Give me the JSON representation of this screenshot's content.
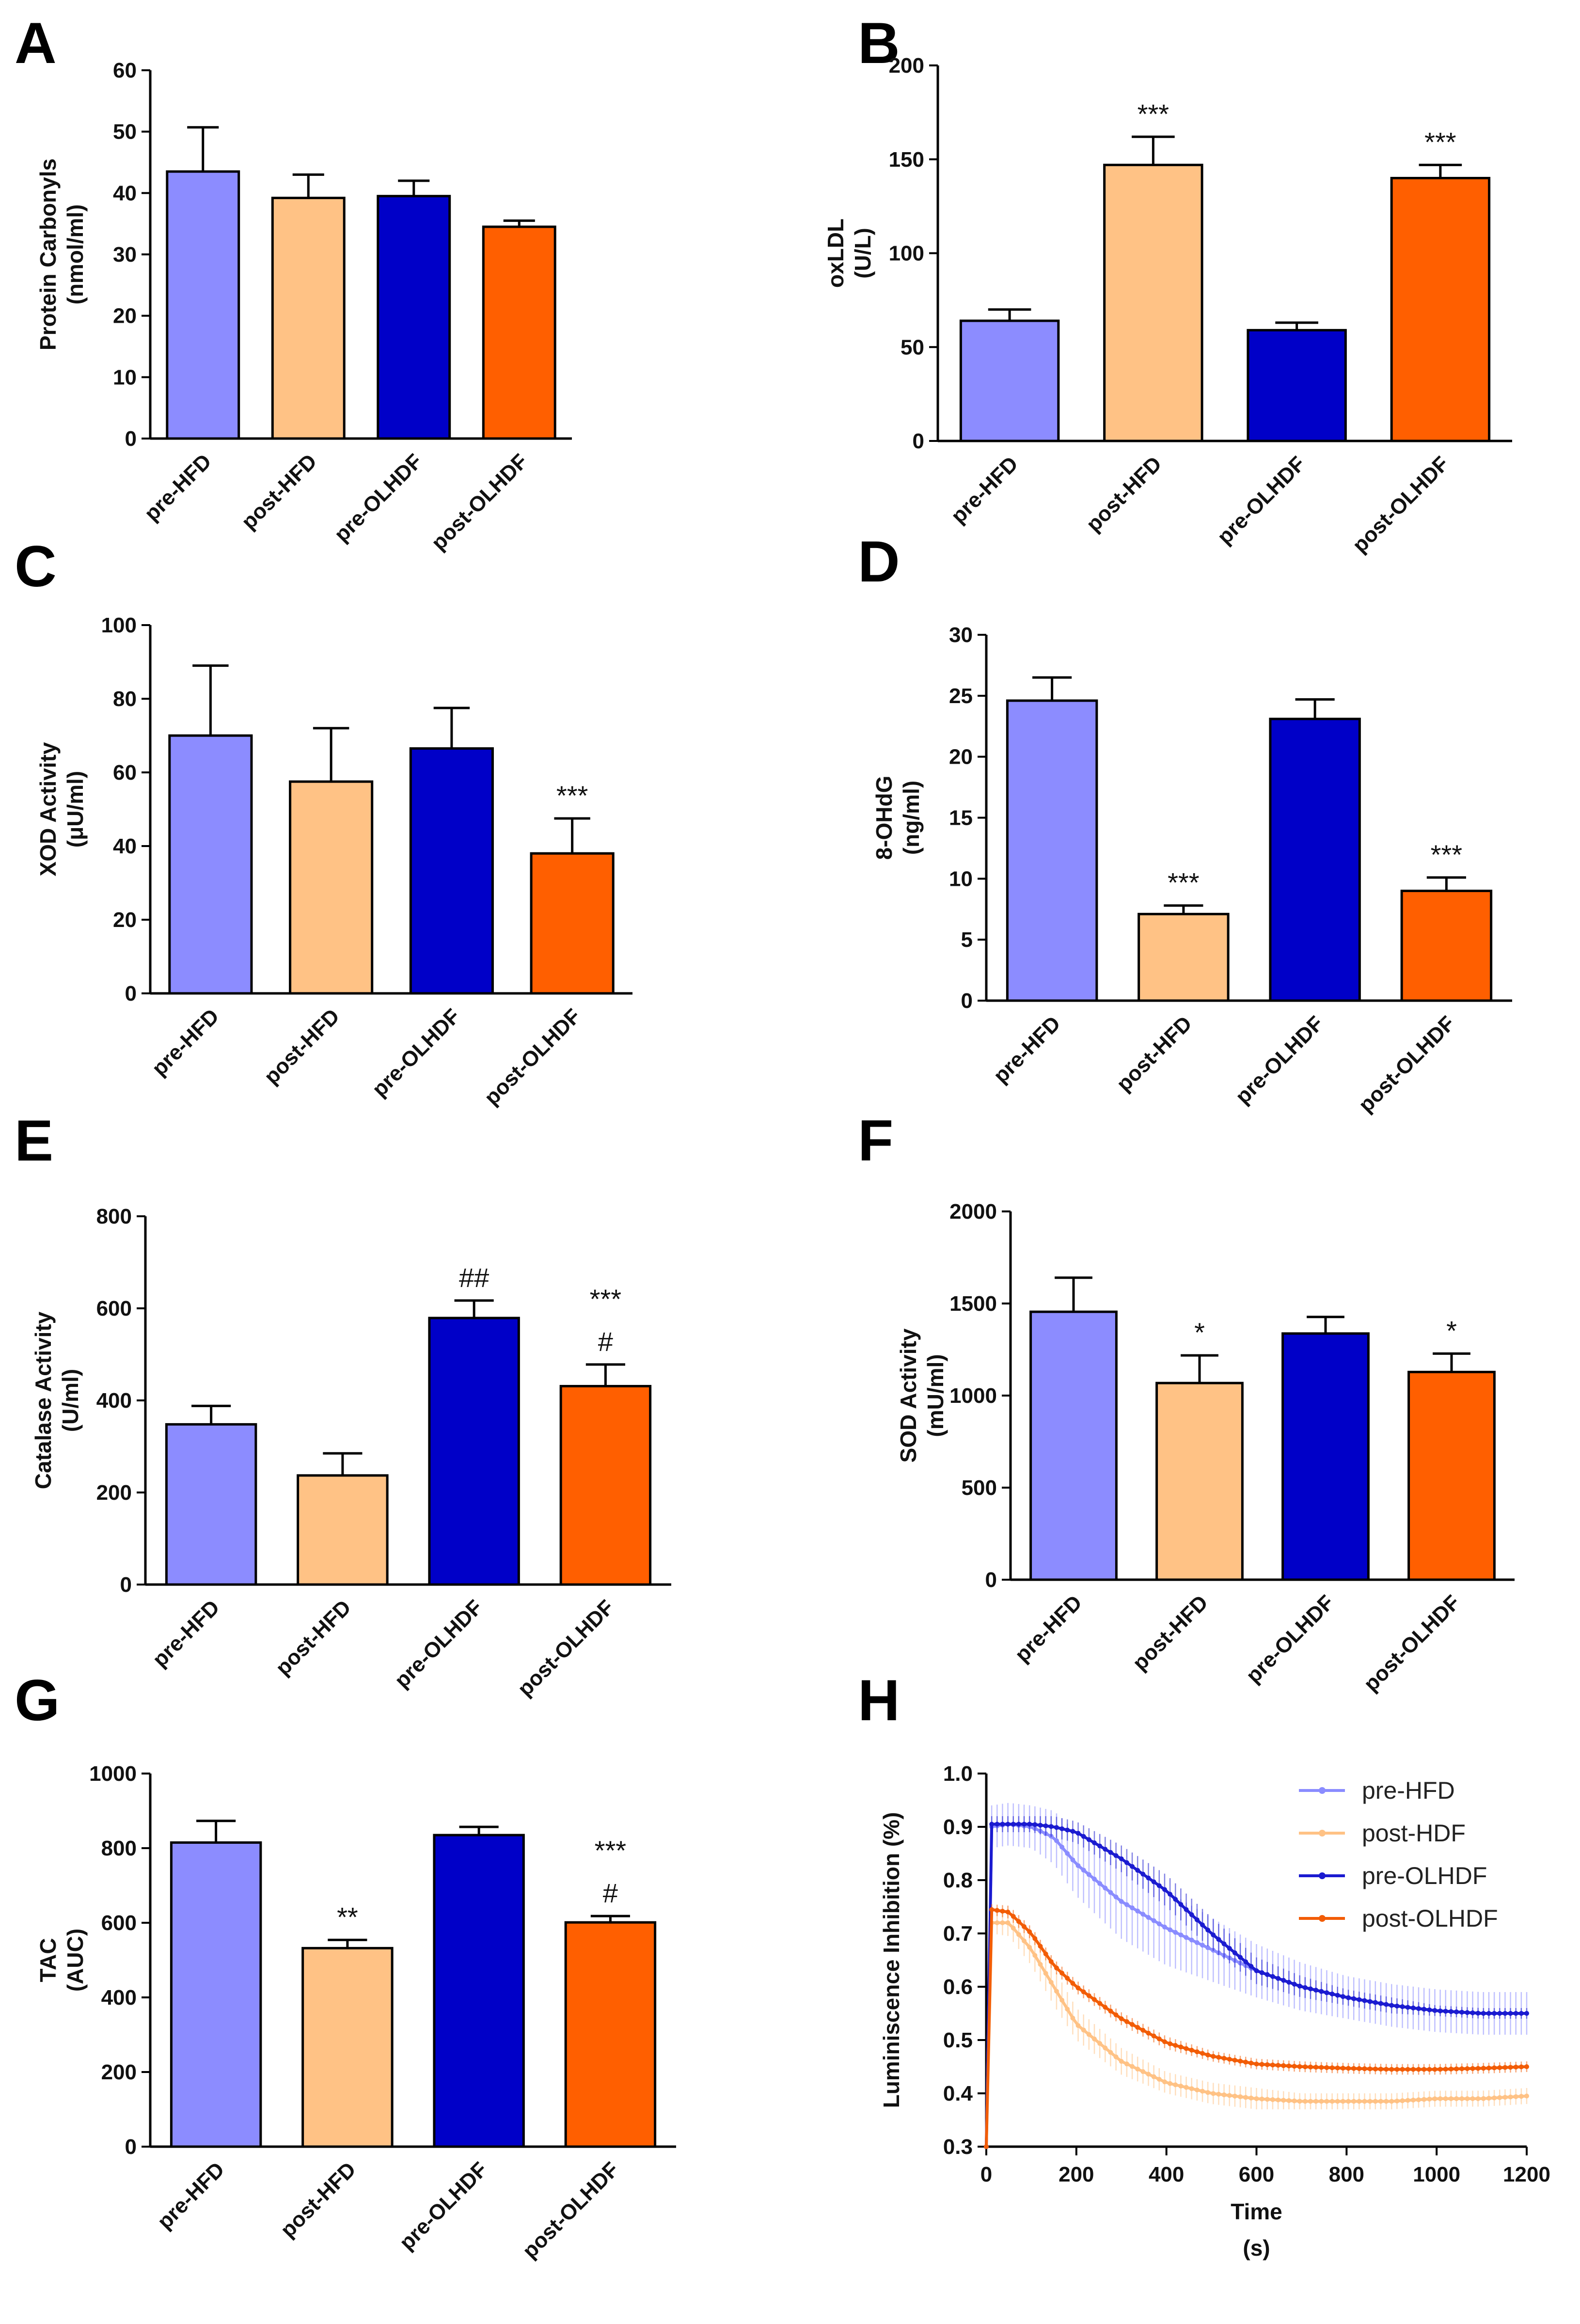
{
  "colors": {
    "pre-HFD": "#8c8cff",
    "post-HFD": "#ffc285",
    "pre-OLHDF": "#0000c8",
    "post-OLHDF": "#ff5f00"
  },
  "chart_data": [
    {
      "panel": "A",
      "type": "bar",
      "categories": [
        "pre-HFD",
        "post-HFD",
        "pre-OLHDF",
        "post-OLHDF"
      ],
      "values": [
        43.5,
        39.2,
        39.5,
        34.5
      ],
      "errors": [
        7.2,
        3.8,
        2.5,
        1.0
      ],
      "annotations": [
        [],
        [],
        [],
        []
      ],
      "ylabel": [
        "Protein Carbonyls",
        "(nmol/ml)"
      ],
      "ylim": [
        0,
        60
      ],
      "yticks": [
        0,
        10,
        20,
        30,
        40,
        50,
        60
      ],
      "ytick_labels": [
        "0",
        "10",
        "20",
        "30",
        "40",
        "50",
        "60"
      ]
    },
    {
      "panel": "B",
      "type": "bar",
      "categories": [
        "pre-HFD",
        "post-HFD",
        "pre-OLHDF",
        "post-OLHDF"
      ],
      "values": [
        64,
        147,
        59,
        140
      ],
      "errors": [
        6,
        15,
        4,
        7
      ],
      "annotations": [
        [],
        [
          "***"
        ],
        [],
        [
          "***"
        ]
      ],
      "ylabel": [
        "oxLDL",
        "(U/L)"
      ],
      "ylim": [
        0,
        200
      ],
      "yticks": [
        0,
        50,
        100,
        150,
        200
      ],
      "ytick_labels": [
        "0",
        "50",
        "100",
        "150",
        "200"
      ]
    },
    {
      "panel": "C",
      "type": "bar",
      "categories": [
        "pre-HFD",
        "post-HFD",
        "pre-OLHDF",
        "post-OLHDF"
      ],
      "values": [
        70,
        57.5,
        66.5,
        38
      ],
      "errors": [
        19,
        14.5,
        11,
        9.5
      ],
      "annotations": [
        [],
        [],
        [],
        [
          "***"
        ]
      ],
      "ylabel": [
        "XOD Activity",
        "(μU/ml)"
      ],
      "ylim": [
        0,
        100
      ],
      "yticks": [
        0,
        20,
        40,
        60,
        80,
        100
      ],
      "ytick_labels": [
        "0",
        "20",
        "40",
        "60",
        "80",
        "100"
      ]
    },
    {
      "panel": "D",
      "type": "bar",
      "categories": [
        "pre-HFD",
        "post-HFD",
        "pre-OLHDF",
        "post-OLHDF"
      ],
      "values": [
        24.6,
        7.1,
        23.1,
        9.0
      ],
      "errors": [
        1.9,
        0.7,
        1.6,
        1.1
      ],
      "annotations": [
        [],
        [
          "***"
        ],
        [],
        [
          "***"
        ]
      ],
      "ylabel": [
        "8-OHdG",
        "(ng/ml)"
      ],
      "ylim": [
        0,
        30
      ],
      "yticks": [
        0,
        5,
        10,
        15,
        20,
        25,
        30
      ],
      "ytick_labels": [
        "0",
        "5",
        "10",
        "15",
        "20",
        "25",
        "30"
      ]
    },
    {
      "panel": "E",
      "type": "bar",
      "categories": [
        "pre-HFD",
        "post-HFD",
        "pre-OLHDF",
        "post-OLHDF"
      ],
      "values": [
        348,
        237,
        579,
        431
      ],
      "errors": [
        40,
        48,
        38,
        47
      ],
      "annotations": [
        [],
        [],
        [
          "##"
        ],
        [
          "***",
          "#"
        ]
      ],
      "ylabel": [
        "Catalase Activity",
        "(U/ml)"
      ],
      "ylim": [
        0,
        800
      ],
      "yticks": [
        0,
        200,
        400,
        600,
        800
      ],
      "ytick_labels": [
        "0",
        "200",
        "400",
        "600",
        "800"
      ]
    },
    {
      "panel": "F",
      "type": "bar",
      "categories": [
        "pre-HFD",
        "post-HFD",
        "pre-OLHDF",
        "post-OLHDF"
      ],
      "values": [
        1455,
        1068,
        1337,
        1128
      ],
      "errors": [
        185,
        150,
        90,
        100
      ],
      "annotations": [
        [],
        [
          "*"
        ],
        [],
        [
          "*"
        ]
      ],
      "ylabel": [
        "SOD Activity",
        "(mU/ml)"
      ],
      "ylim": [
        0,
        2000
      ],
      "yticks": [
        0,
        500,
        1000,
        1500,
        2000
      ],
      "ytick_labels": [
        "0",
        "500",
        "1000",
        "1500",
        "2000"
      ]
    },
    {
      "panel": "G",
      "type": "bar",
      "categories": [
        "pre-HFD",
        "post-HFD",
        "pre-OLHDF",
        "post-OLHDF"
      ],
      "values": [
        815,
        532,
        835,
        601
      ],
      "errors": [
        58,
        22,
        22,
        17
      ],
      "annotations": [
        [],
        [
          "**"
        ],
        [],
        [
          "***",
          "#"
        ]
      ],
      "ylabel": [
        "TAC",
        "(AUC)"
      ],
      "ylim": [
        0,
        1000
      ],
      "yticks": [
        0,
        200,
        400,
        600,
        800,
        1000
      ],
      "ytick_labels": [
        "0",
        "200",
        "400",
        "600",
        "800",
        "1000"
      ]
    },
    {
      "panel": "H",
      "type": "line",
      "xlabel": [
        "Time",
        "(s)"
      ],
      "ylabel": "Luminiscence Inhibition (%)",
      "xlim": [
        0,
        1200
      ],
      "ylim": [
        0.3,
        1.0
      ],
      "xticks": [
        0,
        200,
        400,
        600,
        800,
        1000,
        1200
      ],
      "xtick_labels": [
        "0",
        "200",
        "400",
        "600",
        "800",
        "1000",
        "1200"
      ],
      "yticks": [
        0.3,
        0.4,
        0.5,
        0.6,
        0.7,
        0.8,
        0.9,
        1.0
      ],
      "ytick_labels": [
        "0.3",
        "0.4",
        "0.5",
        "0.6",
        "0.7",
        "0.8",
        "0.9",
        "1.0"
      ],
      "legend_position": "top-right",
      "series": [
        {
          "name": "pre-HFD",
          "color": "#8a8cff",
          "x": [
            0,
            10,
            50,
            100,
            150,
            200,
            300,
            400,
            500,
            600,
            700,
            800,
            900,
            1000,
            1100,
            1200
          ],
          "y": [
            0.3,
            0.9,
            0.905,
            0.9,
            0.88,
            0.83,
            0.76,
            0.71,
            0.67,
            0.63,
            0.6,
            0.58,
            0.565,
            0.555,
            0.55,
            0.55
          ],
          "err": [
            0.02,
            0.04,
            0.04,
            0.04,
            0.05,
            0.06,
            0.07,
            0.07,
            0.06,
            0.05,
            0.045,
            0.04,
            0.04,
            0.04,
            0.04,
            0.04
          ]
        },
        {
          "name": "post-HDF",
          "color": "#ffc285",
          "x": [
            0,
            10,
            50,
            100,
            150,
            200,
            300,
            400,
            500,
            600,
            700,
            800,
            900,
            1000,
            1100,
            1200
          ],
          "y": [
            0.3,
            0.72,
            0.72,
            0.67,
            0.6,
            0.53,
            0.46,
            0.42,
            0.4,
            0.39,
            0.385,
            0.385,
            0.385,
            0.39,
            0.39,
            0.395
          ],
          "err": [
            0.02,
            0.02,
            0.025,
            0.03,
            0.035,
            0.03,
            0.025,
            0.02,
            0.02,
            0.02,
            0.015,
            0.015,
            0.015,
            0.015,
            0.015,
            0.015
          ]
        },
        {
          "name": "pre-OLHDF",
          "color": "#1b1bd0",
          "x": [
            0,
            10,
            50,
            100,
            150,
            200,
            300,
            400,
            500,
            600,
            700,
            800,
            900,
            1000,
            1100,
            1200
          ],
          "y": [
            0.3,
            0.905,
            0.905,
            0.905,
            0.9,
            0.89,
            0.84,
            0.78,
            0.7,
            0.63,
            0.6,
            0.58,
            0.565,
            0.555,
            0.55,
            0.55
          ],
          "err": [
            0.01,
            0.015,
            0.015,
            0.015,
            0.02,
            0.02,
            0.025,
            0.03,
            0.03,
            0.025,
            0.02,
            0.015,
            0.015,
            0.01,
            0.01,
            0.01
          ]
        },
        {
          "name": "post-OLHDF",
          "color": "#f25c05",
          "x": [
            0,
            10,
            50,
            100,
            150,
            200,
            300,
            400,
            500,
            600,
            700,
            800,
            900,
            1000,
            1100,
            1200
          ],
          "y": [
            0.3,
            0.745,
            0.74,
            0.7,
            0.64,
            0.6,
            0.54,
            0.495,
            0.47,
            0.455,
            0.45,
            0.447,
            0.445,
            0.445,
            0.447,
            0.45
          ],
          "err": [
            0.01,
            0.01,
            0.012,
            0.012,
            0.012,
            0.012,
            0.012,
            0.012,
            0.01,
            0.01,
            0.01,
            0.01,
            0.01,
            0.01,
            0.01,
            0.01
          ]
        }
      ]
    }
  ]
}
